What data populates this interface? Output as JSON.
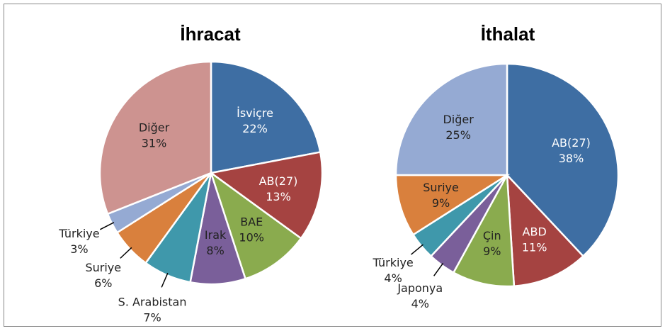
{
  "chart_data": [
    {
      "type": "pie",
      "title": "İhracat",
      "categories": [
        "İsviçre",
        "AB(27)",
        "BAE",
        "Irak",
        "S. Arabistan",
        "Suriye",
        "Türkiye",
        "Diğer"
      ],
      "values": [
        22,
        13,
        10,
        8,
        7,
        6,
        3,
        31
      ],
      "value_labels": [
        "22%",
        "13%",
        "10%",
        "8%",
        "7%",
        "6%",
        "3%",
        "31%"
      ],
      "colors": [
        "#3e6ea3",
        "#a54341",
        "#8aab4e",
        "#7a5f9a",
        "#3f98ab",
        "#d9803d",
        "#95aad3",
        "#cd9390"
      ]
    },
    {
      "type": "pie",
      "title": "İthalat",
      "categories": [
        "AB(27)",
        "ABD",
        "Çin",
        "Japonya",
        "Türkiye",
        "Suriye",
        "Diğer"
      ],
      "values": [
        38,
        11,
        9,
        4,
        4,
        9,
        25
      ],
      "value_labels": [
        "38%",
        "11%",
        "9%",
        "4%",
        "4%",
        "9%",
        "25%"
      ],
      "colors": [
        "#3e6ea3",
        "#a54341",
        "#8aab4e",
        "#7a5f9a",
        "#3f98ab",
        "#d9803d",
        "#95aad3"
      ]
    }
  ]
}
